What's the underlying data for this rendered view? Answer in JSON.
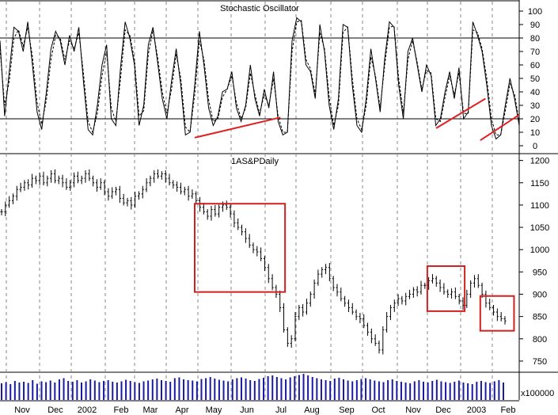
{
  "chart_data": [
    {
      "type": "line",
      "title": "Stochastic Oscillator",
      "ylim": [
        0,
        100
      ],
      "yticks": [
        0,
        10,
        20,
        30,
        40,
        50,
        60,
        70,
        80,
        90,
        100
      ],
      "reference_lines": [
        20,
        80
      ],
      "series": [
        {
          "style": "solid",
          "color": "#000000",
          "values": [
            78,
            22,
            55,
            88,
            85,
            70,
            92,
            60,
            25,
            12,
            40,
            72,
            85,
            78,
            60,
            82,
            70,
            88,
            48,
            12,
            8,
            30,
            60,
            75,
            20,
            15,
            58,
            92,
            80,
            60,
            15,
            30,
            75,
            88,
            62,
            35,
            20,
            48,
            72,
            45,
            8,
            10,
            45,
            85,
            60,
            28,
            15,
            22,
            40,
            42,
            55,
            28,
            18,
            30,
            60,
            35,
            22,
            42,
            28,
            55,
            18,
            8,
            10,
            78,
            95,
            92,
            60,
            55,
            35,
            90,
            70,
            30,
            12,
            35,
            90,
            88,
            45,
            15,
            10,
            35,
            72,
            50,
            25,
            65,
            92,
            88,
            45,
            20,
            70,
            80,
            60,
            40,
            60,
            52,
            15,
            20,
            40,
            55,
            35,
            58,
            20,
            25,
            92,
            82,
            70,
            45,
            15,
            5,
            8,
            30,
            50,
            35,
            15
          ]
        },
        {
          "style": "dashed",
          "color": "#000000",
          "values": [
            72,
            30,
            48,
            80,
            86,
            74,
            88,
            66,
            32,
            16,
            34,
            64,
            82,
            80,
            64,
            78,
            72,
            84,
            54,
            18,
            10,
            24,
            52,
            70,
            28,
            18,
            50,
            86,
            82,
            64,
            22,
            26,
            68,
            86,
            66,
            40,
            24,
            42,
            68,
            50,
            14,
            10,
            38,
            78,
            64,
            34,
            18,
            20,
            36,
            42,
            52,
            32,
            20,
            28,
            54,
            38,
            24,
            38,
            30,
            50,
            22,
            10,
            10,
            70,
            92,
            93,
            64,
            57,
            38,
            84,
            72,
            36,
            15,
            30,
            84,
            88,
            50,
            20,
            12,
            30,
            66,
            52,
            28,
            60,
            88,
            89,
            50,
            24,
            64,
            78,
            62,
            42,
            56,
            54,
            20,
            18,
            36,
            52,
            38,
            54,
            24,
            24,
            86,
            84,
            72,
            50,
            20,
            8,
            8,
            26,
            46,
            38,
            18
          ]
        }
      ],
      "trendlines": [
        {
          "color": "#e02020",
          "from": [
            0.375,
            6
          ],
          "to": [
            0.54,
            21
          ]
        },
        {
          "color": "#e02020",
          "from": [
            0.84,
            13
          ],
          "to": [
            0.935,
            35
          ]
        },
        {
          "color": "#e02020",
          "from": [
            0.925,
            4
          ],
          "to": [
            1.0,
            23
          ]
        }
      ]
    },
    {
      "type": "ohlc",
      "title": "1AS&PDaily",
      "ylim": [
        725,
        1210
      ],
      "yticks": [
        750,
        800,
        850,
        900,
        950,
        1000,
        1050,
        1100,
        1150,
        1200
      ],
      "close": [
        1085,
        1100,
        1110,
        1120,
        1135,
        1140,
        1150,
        1145,
        1160,
        1155,
        1165,
        1150,
        1160,
        1170,
        1155,
        1160,
        1150,
        1140,
        1150,
        1165,
        1155,
        1160,
        1170,
        1160,
        1150,
        1140,
        1150,
        1130,
        1120,
        1130,
        1135,
        1115,
        1105,
        1110,
        1100,
        1120,
        1125,
        1135,
        1150,
        1160,
        1170,
        1165,
        1170,
        1160,
        1150,
        1145,
        1140,
        1130,
        1135,
        1120,
        1125,
        1110,
        1095,
        1085,
        1075,
        1090,
        1080,
        1095,
        1100,
        1095,
        1080,
        1060,
        1050,
        1040,
        1025,
        1010,
        1000,
        995,
        980,
        960,
        935,
        915,
        900,
        870,
        820,
        790,
        800,
        850,
        870,
        860,
        880,
        900,
        925,
        945,
        955,
        960,
        935,
        915,
        905,
        890,
        880,
        870,
        860,
        850,
        845,
        830,
        815,
        800,
        790,
        775,
        820,
        850,
        870,
        880,
        890,
        885,
        895,
        900,
        910,
        905,
        920,
        920,
        930,
        935,
        925,
        915,
        905,
        900,
        905,
        895,
        885,
        875,
        900,
        925,
        935,
        920,
        900,
        880,
        870,
        860,
        850,
        845,
        840
      ]
    },
    {
      "type": "bar",
      "title": "",
      "ylabel": "x100000",
      "values": [
        42,
        45,
        40,
        48,
        44,
        46,
        43,
        50,
        41,
        47,
        45,
        49,
        44,
        52,
        55,
        48,
        46,
        50,
        44,
        47,
        52,
        49,
        45,
        48,
        50,
        46,
        44,
        47,
        51,
        48,
        45,
        43,
        47,
        49,
        52,
        54,
        50,
        48,
        46,
        55,
        57,
        52,
        50,
        49,
        47,
        53,
        55,
        58,
        54,
        51,
        49,
        47,
        52,
        55,
        57,
        54,
        50,
        48,
        53,
        56,
        60,
        62,
        58,
        55,
        52,
        57,
        60,
        63,
        66,
        62,
        58,
        55,
        52,
        50,
        48,
        54,
        56,
        52,
        49,
        47,
        50,
        53,
        55,
        52,
        49,
        47,
        45,
        50,
        52,
        48,
        46,
        44,
        42,
        47,
        50,
        46,
        44,
        48,
        51,
        47,
        45,
        43,
        46,
        49,
        44,
        42,
        40,
        46,
        48,
        45,
        43,
        47,
        50,
        44
      ]
    }
  ],
  "x_axis": {
    "labels": [
      "Nov",
      "Dec",
      "2002",
      "Feb",
      "Mar",
      "Apr",
      "May",
      "Jun",
      "Jul",
      "Aug",
      "Sep",
      "Oct",
      "Nov",
      "Dec",
      "2003",
      "Feb"
    ]
  },
  "annotation_boxes": {
    "color": "#d02020"
  }
}
